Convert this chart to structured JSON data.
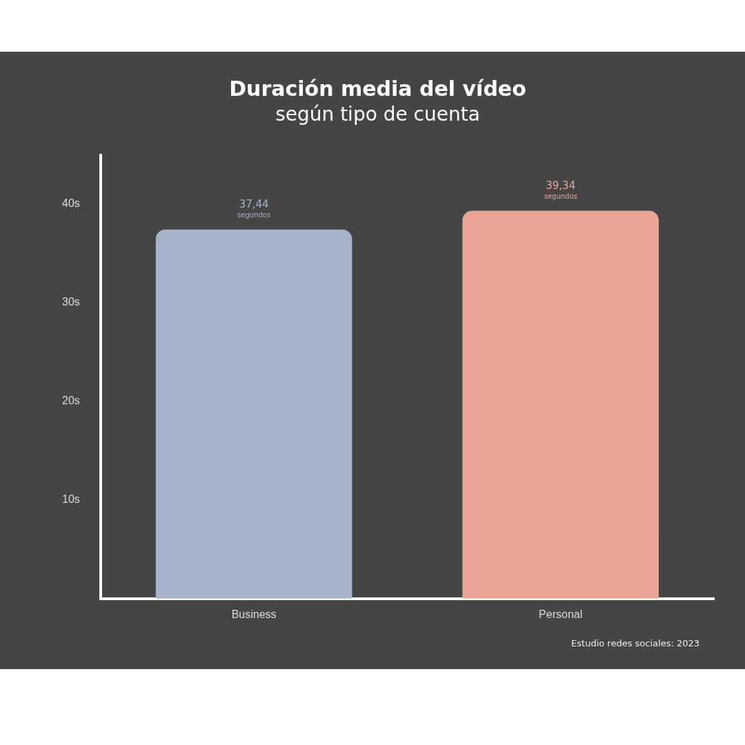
{
  "chart_data": {
    "type": "bar",
    "title": "Duración media del vídeo",
    "subtitle": "según tipo de cuenta",
    "categories": [
      "Business",
      "Personal"
    ],
    "values": [
      37.44,
      39.34
    ],
    "colors": [
      "#a7b2cb",
      "#eba596"
    ],
    "value_labels": [
      "37,44",
      "39,34"
    ],
    "ylim": [
      0,
      45
    ],
    "yticks": [
      {
        "value": 10,
        "label": "10s"
      },
      {
        "value": 20,
        "label": "20s"
      },
      {
        "value": 30,
        "label": "30s"
      },
      {
        "value": 40,
        "label": "40s"
      }
    ],
    "grid": false,
    "legend": false,
    "annotations": [
      {
        "text": "segundos",
        "x": "Business",
        "y": 37.44
      },
      {
        "text": "segundos",
        "x": "Personal",
        "y": 39.34
      },
      "Estudio redes sociales: 2023"
    ]
  }
}
